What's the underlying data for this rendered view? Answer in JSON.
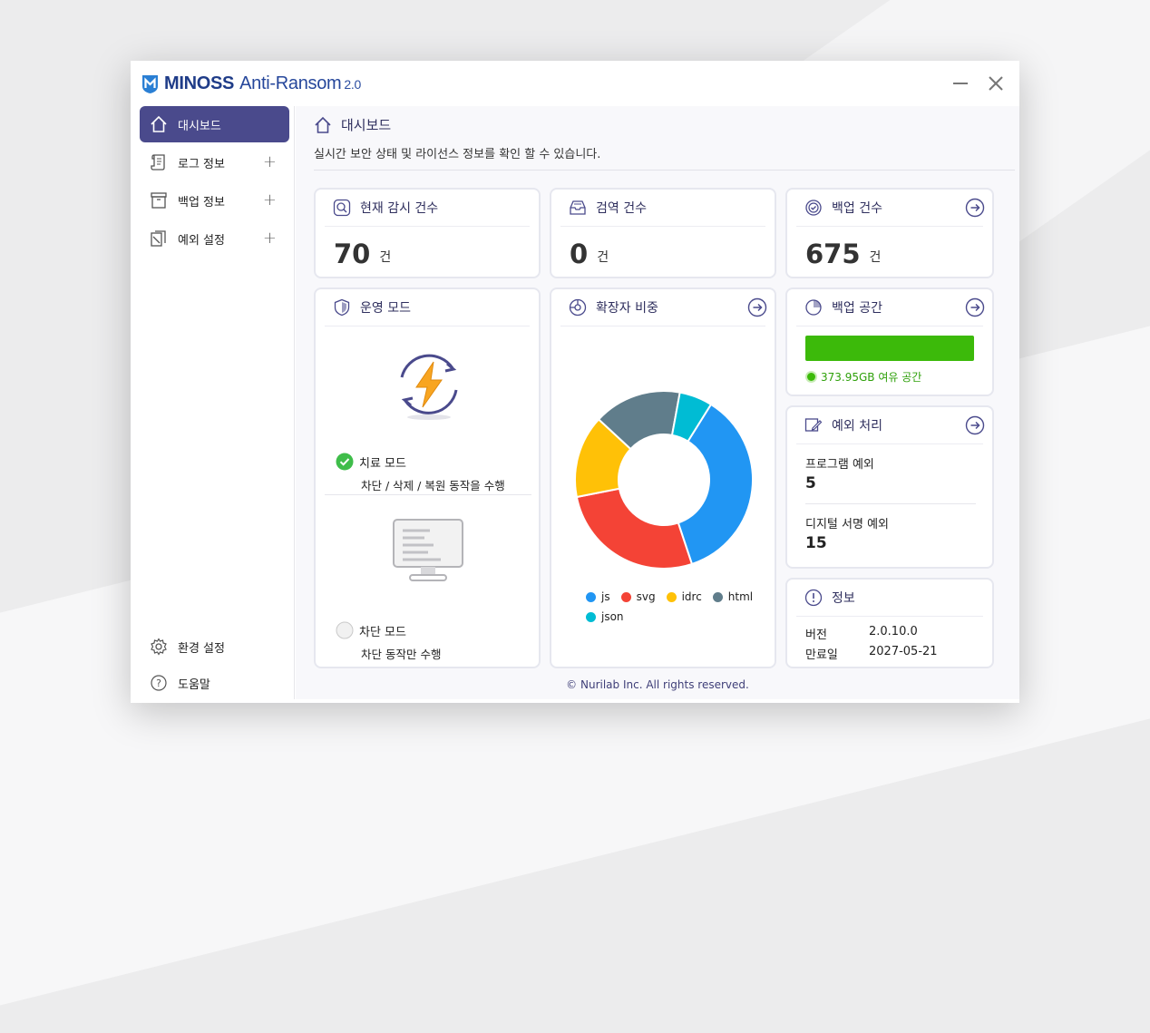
{
  "app": {
    "brand_main": "MINOSS",
    "brand_sub": "Anti-Ransom",
    "brand_ver": "2.0"
  },
  "sidebar": {
    "items": [
      {
        "label": "대시보드",
        "icon": "home-icon",
        "active": true
      },
      {
        "label": "로그 정보",
        "icon": "log-scroll-icon",
        "expandable": "+"
      },
      {
        "label": "백업 정보",
        "icon": "archive-box-icon",
        "expandable": "+"
      },
      {
        "label": "예외 설정",
        "icon": "exception-docs-icon",
        "expandable": "+"
      }
    ],
    "bottom": [
      {
        "label": "환경 설정",
        "icon": "gear-icon"
      },
      {
        "label": "도움말",
        "icon": "help-icon"
      }
    ]
  },
  "page": {
    "title": "대시보드",
    "desc": "실시간 보안 상태 및 라이선스 정보를 확인 할 수 있습니다."
  },
  "cards": {
    "monitor": {
      "title": "현재 감시 건수",
      "value": "70",
      "unit": "건"
    },
    "quarantine": {
      "title": "검역 건수",
      "value": "0",
      "unit": "건"
    },
    "backup": {
      "title": "백업 건수",
      "value": "675",
      "unit": "건"
    },
    "mode": {
      "title": "운영 모드",
      "cure_label": "치료 모드",
      "cure_desc": "차단 / 삭제 / 복원 동작을 수행",
      "block_label": "차단 모드",
      "block_desc": "차단 동작만 수행"
    },
    "ext": {
      "title": "확장자 비중"
    },
    "space": {
      "title": "백업 공간",
      "free": "373.95GB 여유 공간",
      "used_fraction": 0.0
    },
    "exceptions": {
      "title": "예외 처리",
      "program_label": "프로그램 예외",
      "program_value": "5",
      "signature_label": "디지털 서명 예외",
      "signature_value": "15"
    },
    "info": {
      "title": "정보",
      "version_label": "버전",
      "version_value": "2.0.10.0",
      "expire_label": "만료일",
      "expire_value": "2027-05-21"
    }
  },
  "footer": "© Nurilab Inc. All rights reserved.",
  "colors": {
    "accent": "#4a4a8c",
    "green": "#3cba0a",
    "title": "#2f2f5e"
  },
  "chart_data": {
    "type": "pie",
    "donut": true,
    "categories": [
      "js",
      "svg",
      "idrc",
      "html",
      "json"
    ],
    "values": [
      36,
      27,
      15,
      16,
      6
    ],
    "colors": [
      "#2196f3",
      "#f44336",
      "#ffc107",
      "#607d8b",
      "#00bcd4"
    ],
    "legend_position": "bottom"
  }
}
